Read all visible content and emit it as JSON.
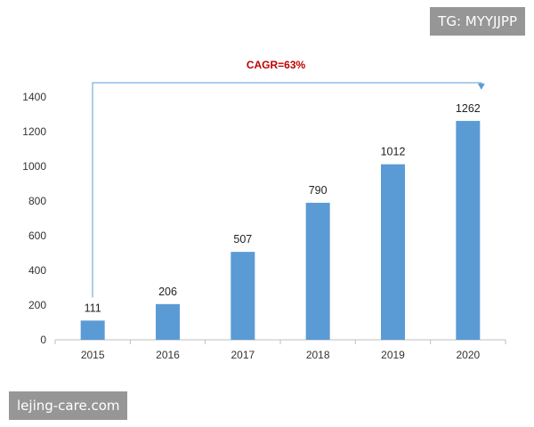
{
  "chart_data": {
    "type": "bar",
    "categories": [
      "2015",
      "2016",
      "2017",
      "2018",
      "2019",
      "2020"
    ],
    "values": [
      111,
      206,
      507,
      790,
      1012,
      1262
    ],
    "data_labels": [
      "111",
      "206",
      "507",
      "790",
      "1012",
      "1262"
    ],
    "y_ticks": [
      "0",
      "200",
      "400",
      "600",
      "800",
      "1000",
      "1200",
      "1400"
    ],
    "ylim": [
      0,
      1400
    ],
    "grid": false,
    "bar_color": "#5b9bd5",
    "annotation": {
      "text": "CAGR=63%",
      "color": "#c00000",
      "arrow_color": "#5b9bd5",
      "from_category": "2015",
      "to_category": "2020"
    }
  },
  "watermarks": {
    "top_right": "TG: MYYJJPP",
    "bottom_left": "lejing-care.com"
  }
}
